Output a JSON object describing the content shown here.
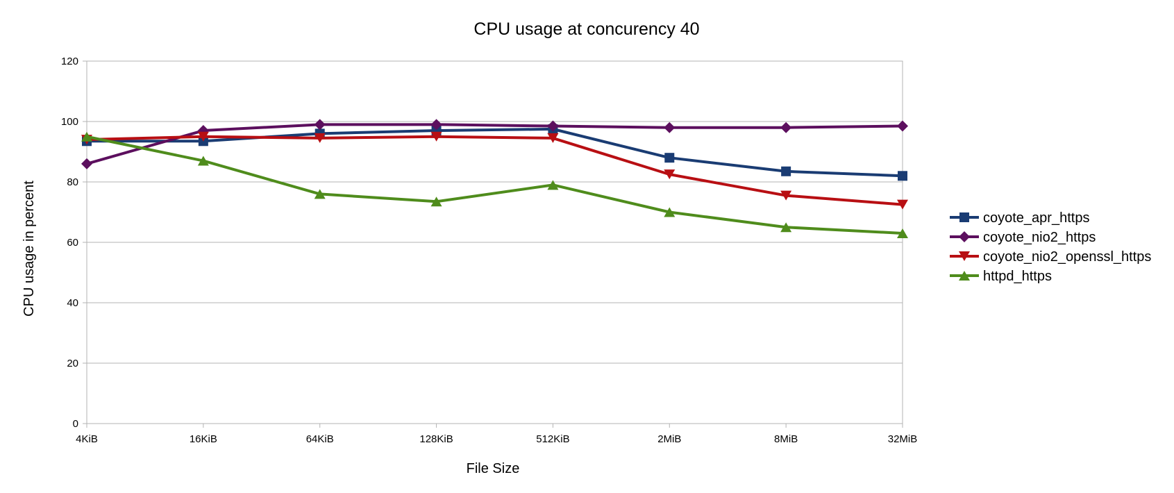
{
  "chart_data": {
    "type": "line",
    "title": "CPU usage at concurency 40",
    "xlabel": "File Size",
    "ylabel": "CPU usage in percent",
    "categories": [
      "4KiB",
      "16KiB",
      "64KiB",
      "128KiB",
      "512KiB",
      "2MiB",
      "8MiB",
      "32MiB"
    ],
    "ylim": [
      0,
      120
    ],
    "yticks": [
      0,
      20,
      40,
      60,
      80,
      100,
      120
    ],
    "grid": true,
    "legend_position": "right",
    "series": [
      {
        "name": "coyote_apr_https",
        "color": "#1a3c73",
        "marker": "square",
        "values": [
          93.5,
          93.5,
          96,
          97,
          97.5,
          88,
          83.5,
          82
        ]
      },
      {
        "name": "coyote_nio2_https",
        "color": "#5c0f5e",
        "marker": "diamond",
        "values": [
          86,
          97,
          99,
          99,
          98.5,
          98,
          98,
          98.5
        ]
      },
      {
        "name": "coyote_nio2_openssl_https",
        "color": "#b80f13",
        "marker": "triangle-down",
        "values": [
          94,
          95,
          94.5,
          95,
          94.5,
          82.5,
          75.5,
          72.5
        ]
      },
      {
        "name": "httpd_https",
        "color": "#4f8c1c",
        "marker": "triangle-up",
        "values": [
          95,
          87,
          76,
          73.5,
          79,
          70,
          65,
          63
        ]
      }
    ]
  }
}
